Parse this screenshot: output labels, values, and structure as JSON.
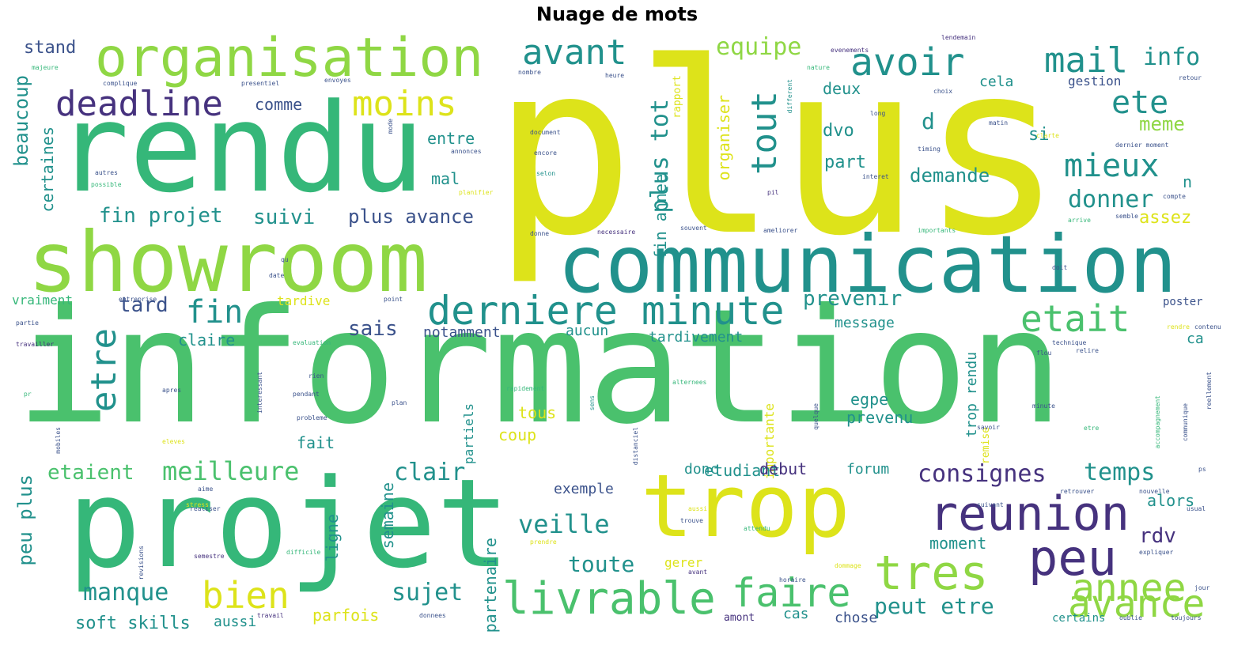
{
  "title": "Nuage de mots",
  "palette": {
    "yellow": "#dde31a",
    "lime": "#8fd744",
    "green": "#35b779",
    "green2": "#4ac16d",
    "teal": "#21918c",
    "teal2": "#1f9e89",
    "blue": "#3b528b",
    "purple": "#46327e",
    "gold": "#c2df23"
  },
  "words": [
    {
      "text": "plus"
    },
    {
      "text": "information"
    },
    {
      "text": "rendu"
    },
    {
      "text": "projet"
    },
    {
      "text": "showroom"
    },
    {
      "text": "communication"
    },
    {
      "text": "trop"
    },
    {
      "text": "organisation"
    },
    {
      "text": "reunion"
    },
    {
      "text": "derniere minute"
    },
    {
      "text": "livrable"
    },
    {
      "text": "tres"
    },
    {
      "text": "faire"
    },
    {
      "text": "peu"
    },
    {
      "text": "annee"
    },
    {
      "text": "avance"
    },
    {
      "text": "avoir"
    },
    {
      "text": "mail"
    },
    {
      "text": "deadline"
    },
    {
      "text": "avant"
    },
    {
      "text": "moins"
    },
    {
      "text": "etait"
    },
    {
      "text": "tout"
    },
    {
      "text": "bien"
    },
    {
      "text": "etre"
    },
    {
      "text": "fin"
    },
    {
      "text": "mieux"
    },
    {
      "text": "ete"
    },
    {
      "text": "info"
    },
    {
      "text": "plus tot"
    },
    {
      "text": "veille"
    },
    {
      "text": "meilleure"
    },
    {
      "text": "manque"
    },
    {
      "text": "consignes"
    },
    {
      "text": "temps"
    },
    {
      "text": "donner"
    },
    {
      "text": "peut etre"
    },
    {
      "text": "clair"
    },
    {
      "text": "sujet"
    },
    {
      "text": "toute"
    },
    {
      "text": "fin projet"
    },
    {
      "text": "suivi"
    },
    {
      "text": "plus avance"
    },
    {
      "text": "equipe"
    },
    {
      "text": "beaucoup"
    },
    {
      "text": "peu plus"
    },
    {
      "text": "etaient"
    },
    {
      "text": "fin annee"
    },
    {
      "text": "tard"
    },
    {
      "text": "sais"
    },
    {
      "text": "prevenir"
    },
    {
      "text": "demande"
    },
    {
      "text": "stand"
    },
    {
      "text": "soft skills"
    },
    {
      "text": "rdv"
    },
    {
      "text": "meme"
    },
    {
      "text": "assez"
    },
    {
      "text": "entre"
    },
    {
      "text": "mal"
    },
    {
      "text": "comme"
    },
    {
      "text": "deux"
    },
    {
      "text": "dvo"
    },
    {
      "text": "d"
    },
    {
      "text": "part"
    },
    {
      "text": "cela"
    },
    {
      "text": "gestion"
    },
    {
      "text": "si"
    },
    {
      "text": "n"
    },
    {
      "text": "certaines"
    },
    {
      "text": "organiser"
    },
    {
      "text": "vraiment"
    },
    {
      "text": "tardive"
    },
    {
      "text": "claire"
    },
    {
      "text": "notamment"
    },
    {
      "text": "aucun"
    },
    {
      "text": "message"
    },
    {
      "text": "tardivement"
    },
    {
      "text": "trop rendu"
    },
    {
      "text": "ca"
    },
    {
      "text": "poster"
    },
    {
      "text": "egpe"
    },
    {
      "text": "prevenu"
    },
    {
      "text": "tous"
    },
    {
      "text": "coup"
    },
    {
      "text": "fait"
    },
    {
      "text": "partiels"
    },
    {
      "text": "importante"
    },
    {
      "text": "etudiant"
    },
    {
      "text": "debut"
    },
    {
      "text": "forum"
    },
    {
      "text": "donc"
    },
    {
      "text": "exemple"
    },
    {
      "text": "alors"
    },
    {
      "text": "moment"
    },
    {
      "text": "partenaire"
    },
    {
      "text": "semaine"
    },
    {
      "text": "ligne"
    },
    {
      "text": "gerer"
    },
    {
      "text": "parfois"
    },
    {
      "text": "aussi"
    },
    {
      "text": "chose"
    },
    {
      "text": "certains"
    },
    {
      "text": "cas"
    },
    {
      "text": "amont"
    },
    {
      "text": "rapport"
    },
    {
      "text": "remise"
    },
    {
      "text": "majeure"
    },
    {
      "text": "complique"
    },
    {
      "text": "presentiel"
    },
    {
      "text": "envoyes"
    },
    {
      "text": "nombre"
    },
    {
      "text": "heure"
    },
    {
      "text": "nature"
    },
    {
      "text": "evenements"
    },
    {
      "text": "lendemain"
    },
    {
      "text": "choix"
    },
    {
      "text": "matin"
    },
    {
      "text": "clarte"
    },
    {
      "text": "dernier moment"
    },
    {
      "text": "document"
    },
    {
      "text": "encore"
    },
    {
      "text": "selon"
    },
    {
      "text": "annonces"
    },
    {
      "text": "autres"
    },
    {
      "text": "possible"
    },
    {
      "text": "planifier"
    },
    {
      "text": "donne"
    },
    {
      "text": "necessaire"
    },
    {
      "text": "souvent"
    },
    {
      "text": "ameliorer"
    },
    {
      "text": "importants"
    },
    {
      "text": "arrive"
    },
    {
      "text": "semble"
    },
    {
      "text": "compte"
    },
    {
      "text": "entreprise"
    },
    {
      "text": "point"
    },
    {
      "text": "partie"
    },
    {
      "text": "travailler"
    },
    {
      "text": "evaluation"
    },
    {
      "text": "technique"
    },
    {
      "text": "rien"
    },
    {
      "text": "pendant"
    },
    {
      "text": "probleme"
    },
    {
      "text": "apres"
    },
    {
      "text": "plan"
    },
    {
      "text": "rapidement"
    },
    {
      "text": "alternees"
    },
    {
      "text": "minute"
    },
    {
      "text": "flou"
    },
    {
      "text": "savoir"
    },
    {
      "text": "quelque"
    },
    {
      "text": "etre"
    },
    {
      "text": "pr"
    },
    {
      "text": "eleves"
    },
    {
      "text": "realiser"
    },
    {
      "text": "semestre"
    },
    {
      "text": "revisions"
    },
    {
      "text": "stress"
    },
    {
      "text": "difficile"
    },
    {
      "text": "prendre"
    },
    {
      "text": "avant"
    },
    {
      "text": "travail"
    },
    {
      "text": "donnees"
    },
    {
      "text": "horaire"
    },
    {
      "text": "dommage"
    },
    {
      "text": "nouvelle"
    },
    {
      "text": "expliquer"
    },
    {
      "text": "jour"
    },
    {
      "text": "toujours"
    },
    {
      "text": "oublie"
    },
    {
      "text": "attendu"
    },
    {
      "text": "trouve"
    },
    {
      "text": "aussi"
    },
    {
      "text": "aime"
    },
    {
      "text": "relire"
    },
    {
      "text": "doit"
    },
    {
      "text": "date"
    },
    {
      "text": "qu"
    },
    {
      "text": "sens"
    },
    {
      "text": "ps"
    },
    {
      "text": "long"
    },
    {
      "text": "timing"
    },
    {
      "text": "different"
    },
    {
      "text": "mode"
    },
    {
      "text": "interet"
    },
    {
      "text": "retour"
    },
    {
      "text": "pil"
    },
    {
      "text": "accompagnement"
    },
    {
      "text": "communique"
    },
    {
      "text": "reellement"
    },
    {
      "text": "distanciel"
    },
    {
      "text": "interessant"
    },
    {
      "text": "contenu"
    },
    {
      "text": "rendre"
    },
    {
      "text": "retrouver"
    },
    {
      "text": "mobiles"
    },
    {
      "text": "suivant"
    },
    {
      "text": "usual"
    }
  ]
}
